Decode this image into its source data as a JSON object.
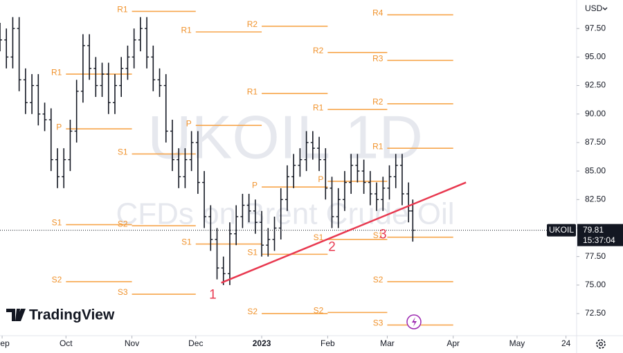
{
  "chart_data": {
    "type": "ohlc",
    "symbol": "UKOIL",
    "watermark": [
      "UKOIL 1D",
      "CFDs on Brent Crude Oil"
    ],
    "brand": "TradingView",
    "currency": "USD",
    "color": "#131722",
    "x": [
      -1,
      2,
      5,
      8,
      11,
      14,
      17,
      20,
      23,
      26,
      29,
      32,
      35,
      38,
      41,
      44,
      47,
      50,
      53,
      56,
      59,
      62,
      65,
      68,
      71,
      74,
      77,
      80,
      83,
      86,
      89,
      92,
      95,
      98,
      101,
      104,
      107,
      110,
      113,
      116,
      119,
      122,
      125,
      128,
      131,
      134,
      137,
      140,
      143,
      146,
      149,
      152,
      155,
      158,
      161,
      164,
      167,
      170,
      173,
      176,
      179,
      182,
      185,
      188,
      191,
      193
    ],
    "open": [
      97,
      96.5,
      95,
      97.5,
      93,
      91,
      92.5,
      90,
      89.5,
      86,
      84.5,
      86,
      88.5,
      92,
      96,
      94,
      92.5,
      93.5,
      91,
      92.5,
      94,
      95,
      96.5,
      97.5,
      95,
      93,
      92.5,
      88.5,
      86,
      84.5,
      86,
      87.5,
      84,
      81,
      79,
      76.5,
      76,
      79.5,
      81,
      82,
      81.5,
      80.5,
      78.5,
      79,
      80,
      82.5,
      84.5,
      85.5,
      86,
      87.5,
      87,
      86,
      83.5,
      81,
      82.5,
      84,
      85.5,
      85,
      84,
      83,
      82.5,
      83.5,
      84.5,
      85.5,
      83,
      81.5
    ],
    "high": [
      98,
      97.5,
      98.5,
      98.5,
      94,
      93.5,
      93.5,
      91,
      90.5,
      87,
      87,
      89.5,
      93,
      97,
      97,
      95,
      94.5,
      94.5,
      93.5,
      95,
      96,
      97.5,
      98.5,
      98.5,
      96,
      94,
      93.5,
      89.5,
      87,
      87,
      88.5,
      88.5,
      85,
      82,
      80,
      77.5,
      80.5,
      82,
      83,
      83,
      82.5,
      81.5,
      80,
      81,
      83.5,
      85.5,
      86.5,
      87,
      88.5,
      88.5,
      88,
      87,
      84.5,
      83.5,
      85,
      86.5,
      86.5,
      86,
      85,
      84,
      84.5,
      85.5,
      86.5,
      86.5,
      84,
      82.5
    ],
    "low": [
      95.5,
      94,
      94,
      92,
      90,
      90,
      89,
      88.5,
      85,
      83.5,
      83.5,
      85,
      87.5,
      91,
      93,
      91.5,
      91.5,
      90,
      90,
      91.5,
      93,
      94,
      95.5,
      94,
      92,
      91.5,
      87.5,
      85,
      83.5,
      83.5,
      85,
      83,
      80,
      78,
      75.5,
      75,
      75,
      78.5,
      80,
      80.5,
      79.5,
      77.5,
      77.5,
      78,
      79,
      81.5,
      83.5,
      84.5,
      85,
      86,
      85,
      82.5,
      80,
      80,
      81.5,
      83,
      84,
      83,
      82,
      81.5,
      81.5,
      82.5,
      83.5,
      82,
      80.5,
      78.81
    ],
    "close": [
      96.5,
      95,
      97.5,
      93,
      91,
      92.5,
      90,
      89.5,
      86,
      84.5,
      86,
      88.5,
      92,
      96,
      94,
      92.5,
      93.5,
      91,
      92.5,
      94,
      95,
      96.5,
      97.5,
      95,
      93,
      92.5,
      88.5,
      86,
      84.5,
      86,
      87.5,
      84,
      81,
      79,
      76.5,
      76,
      79.5,
      81,
      82,
      81.5,
      80.5,
      78.5,
      79,
      80,
      82.5,
      84.5,
      85.5,
      86,
      87.5,
      87,
      86,
      83.5,
      81,
      82.5,
      84,
      85.5,
      85,
      84,
      83,
      82.5,
      83.5,
      84.5,
      85.5,
      83,
      81.5,
      79.81
    ],
    "xlim": [
      -1,
      270
    ],
    "ylim": [
      70.56,
      100
    ],
    "xticks": [
      {
        "value": 0,
        "label": "Sep"
      },
      {
        "value": 30,
        "label": "Oct"
      },
      {
        "value": 61,
        "label": "Nov"
      },
      {
        "value": 91,
        "label": "Dec"
      },
      {
        "value": 122,
        "label": "2023"
      },
      {
        "value": 153,
        "label": "Feb"
      },
      {
        "value": 181,
        "label": "Mar"
      },
      {
        "value": 212,
        "label": "Apr"
      },
      {
        "value": 242,
        "label": "May"
      },
      {
        "value": 265,
        "label": "24"
      }
    ],
    "yticks": [
      {
        "value": 72.5,
        "label": "72.50"
      },
      {
        "value": 75,
        "label": "75.00"
      },
      {
        "value": 77.5,
        "label": "77.50"
      },
      {
        "value": 80,
        "label": "80.00"
      },
      {
        "value": 82.5,
        "label": "82.50"
      },
      {
        "value": 85,
        "label": "85.00"
      },
      {
        "value": 87.5,
        "label": "87.50"
      },
      {
        "value": 90,
        "label": "90.00"
      },
      {
        "value": 92.5,
        "label": "92.50"
      },
      {
        "value": 95,
        "label": "95.00"
      },
      {
        "value": 97.5,
        "label": "97.50"
      }
    ],
    "pivot_color": "#f7a54a",
    "pivots": [
      {
        "from": 30,
        "to": 61,
        "levels": [
          {
            "name": "R1",
            "value": 93.5
          },
          {
            "name": "P",
            "value": 88.7
          },
          {
            "name": "S1",
            "value": 80.3
          },
          {
            "name": "S2",
            "value": 75.3
          }
        ]
      },
      {
        "from": 61,
        "to": 91,
        "levels": [
          {
            "name": "R1",
            "value": 99.0
          },
          {
            "name": "S1",
            "value": 86.5
          },
          {
            "name": "S2",
            "value": 80.2
          },
          {
            "name": "S3",
            "value": 74.2
          }
        ]
      },
      {
        "from": 91,
        "to": 122,
        "levels": [
          {
            "name": "R1",
            "value": 97.2
          },
          {
            "name": "P",
            "value": 89.0
          },
          {
            "name": "S1",
            "value": 78.6
          }
        ]
      },
      {
        "from": 122,
        "to": 153,
        "levels": [
          {
            "name": "R2",
            "value": 97.7
          },
          {
            "name": "R1",
            "value": 91.8
          },
          {
            "name": "P",
            "value": 83.6
          },
          {
            "name": "S1",
            "value": 77.7
          },
          {
            "name": "S2",
            "value": 72.5
          }
        ]
      },
      {
        "from": 153,
        "to": 181,
        "levels": [
          {
            "name": "R2",
            "value": 95.4
          },
          {
            "name": "R1",
            "value": 90.4
          },
          {
            "name": "P",
            "value": 84.1
          },
          {
            "name": "S1",
            "value": 79.0
          },
          {
            "name": "S2",
            "value": 72.6
          }
        ]
      },
      {
        "from": 181,
        "to": 212,
        "levels": [
          {
            "name": "R4",
            "value": 98.7
          },
          {
            "name": "R3",
            "value": 94.7
          },
          {
            "name": "R2",
            "value": 90.9
          },
          {
            "name": "R1",
            "value": 87.0
          },
          {
            "name": "S1",
            "value": 79.2
          },
          {
            "name": "S2",
            "value": 75.3
          },
          {
            "name": "S3",
            "value": 71.5
          }
        ]
      }
    ],
    "trendline": {
      "color": "#e8384f",
      "x": [
        103,
        218
      ],
      "y": [
        75.2,
        84.0
      ]
    },
    "annotations": [
      {
        "text": "1",
        "x": 99,
        "y": 74.1
      },
      {
        "text": "2",
        "x": 155,
        "y": 78.3
      },
      {
        "text": "3",
        "x": 179,
        "y": 79.4
      }
    ],
    "price_line": {
      "value": 79.81,
      "time": "15:37:04"
    }
  }
}
